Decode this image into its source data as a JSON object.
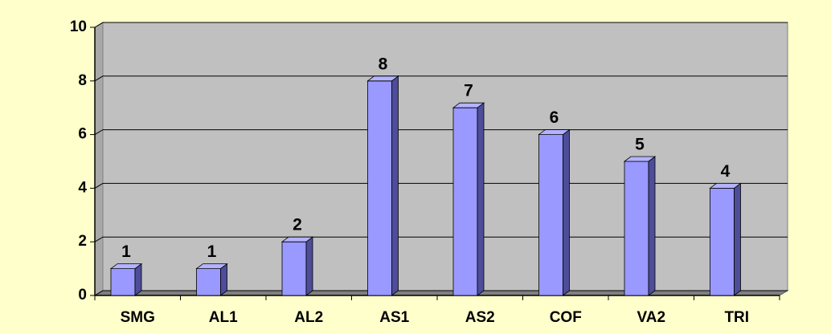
{
  "chart_data": {
    "type": "bar3d",
    "categories": [
      "SMG",
      "AL1",
      "AL2",
      "AS1",
      "AS2",
      "COF",
      "VA2",
      "TRI"
    ],
    "values": [
      1,
      1,
      2,
      8,
      7,
      6,
      5,
      4
    ],
    "color": "#9999ff",
    "ylim": [
      0,
      10
    ],
    "yticks": [
      0,
      2,
      4,
      6,
      8,
      10
    ],
    "grid": true
  }
}
